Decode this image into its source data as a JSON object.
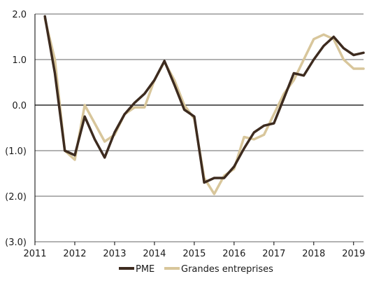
{
  "chart_data": {
    "type": "line",
    "title": "",
    "xlabel": "",
    "ylabel": "",
    "xlim": [
      2011.0,
      2019.25
    ],
    "ylim": [
      -3.0,
      2.0
    ],
    "y_ticks": [
      2.0,
      1.0,
      0.0,
      -1.0,
      -2.0,
      -3.0
    ],
    "y_tick_labels": [
      "2.0",
      "1.0",
      "0.0",
      "(1.0)",
      "(2.0)",
      "(3.0)"
    ],
    "x_ticks": [
      2011,
      2012,
      2013,
      2014,
      2015,
      2016,
      2017,
      2018,
      2019
    ],
    "x_tick_labels": [
      "2011",
      "2012",
      "2013",
      "2014",
      "2015",
      "2016",
      "2017",
      "2018",
      "2019"
    ],
    "grid": "horizontal",
    "legend_position": "bottom",
    "series": [
      {
        "name": "PME",
        "color": "#3d2b1f",
        "points": [
          [
            2011.25,
            1.95
          ],
          [
            2011.5,
            0.7
          ],
          [
            2011.75,
            -1.0
          ],
          [
            2012.0,
            -1.1
          ],
          [
            2012.25,
            -0.25
          ],
          [
            2012.5,
            -0.75
          ],
          [
            2012.75,
            -1.15
          ],
          [
            2013.0,
            -0.6
          ],
          [
            2013.25,
            -0.2
          ],
          [
            2013.5,
            0.05
          ],
          [
            2013.75,
            0.25
          ],
          [
            2014.0,
            0.55
          ],
          [
            2014.25,
            0.97
          ],
          [
            2014.5,
            0.45
          ],
          [
            2014.75,
            -0.1
          ],
          [
            2015.0,
            -0.25
          ],
          [
            2015.25,
            -1.7
          ],
          [
            2015.5,
            -1.6
          ],
          [
            2015.75,
            -1.6
          ],
          [
            2016.0,
            -1.35
          ],
          [
            2016.25,
            -0.95
          ],
          [
            2016.5,
            -0.6
          ],
          [
            2016.75,
            -0.45
          ],
          [
            2017.0,
            -0.4
          ],
          [
            2017.25,
            0.15
          ],
          [
            2017.5,
            0.7
          ],
          [
            2017.75,
            0.65
          ],
          [
            2018.0,
            1.0
          ],
          [
            2018.25,
            1.3
          ],
          [
            2018.5,
            1.5
          ],
          [
            2018.75,
            1.25
          ],
          [
            2019.0,
            1.1
          ],
          [
            2019.25,
            1.15
          ]
        ]
      },
      {
        "name": "Grandes entreprises",
        "color": "#d8c69b",
        "points": [
          [
            2011.25,
            1.9
          ],
          [
            2011.5,
            1.0
          ],
          [
            2011.75,
            -1.0
          ],
          [
            2012.0,
            -1.2
          ],
          [
            2012.25,
            0.0
          ],
          [
            2012.5,
            -0.4
          ],
          [
            2012.75,
            -0.8
          ],
          [
            2013.0,
            -0.65
          ],
          [
            2013.25,
            -0.2
          ],
          [
            2013.5,
            -0.05
          ],
          [
            2013.75,
            -0.05
          ],
          [
            2014.0,
            0.55
          ],
          [
            2014.25,
            0.95
          ],
          [
            2014.5,
            0.55
          ],
          [
            2014.75,
            0.0
          ],
          [
            2015.0,
            -0.3
          ],
          [
            2015.25,
            -1.6
          ],
          [
            2015.5,
            -1.95
          ],
          [
            2015.75,
            -1.55
          ],
          [
            2016.0,
            -1.4
          ],
          [
            2016.25,
            -0.7
          ],
          [
            2016.5,
            -0.75
          ],
          [
            2016.75,
            -0.65
          ],
          [
            2017.0,
            -0.2
          ],
          [
            2017.25,
            0.25
          ],
          [
            2017.5,
            0.55
          ],
          [
            2017.75,
            1.0
          ],
          [
            2018.0,
            1.45
          ],
          [
            2018.25,
            1.55
          ],
          [
            2018.5,
            1.45
          ],
          [
            2018.75,
            1.0
          ],
          [
            2019.0,
            0.8
          ],
          [
            2019.25,
            0.8
          ]
        ]
      }
    ]
  }
}
